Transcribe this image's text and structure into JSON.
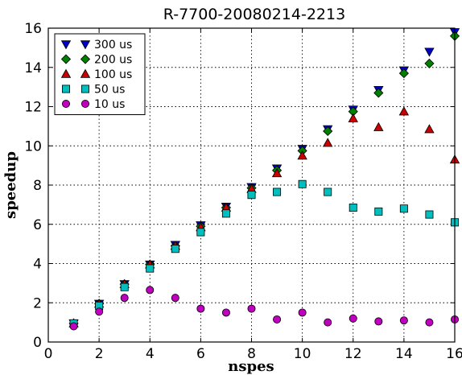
{
  "chart_data": {
    "type": "scatter",
    "title": "R-7700-20080214-2213",
    "xlabel": "nspes",
    "ylabel": "speedup",
    "xlim": [
      0,
      16
    ],
    "ylim": [
      0,
      16
    ],
    "xticks": [
      0,
      2,
      4,
      6,
      8,
      10,
      12,
      14,
      16
    ],
    "yticks": [
      0,
      2,
      4,
      6,
      8,
      10,
      12,
      14,
      16
    ],
    "grid": true,
    "legend_position": "top-left",
    "series": [
      {
        "name": "300 us",
        "marker": "triangle-down",
        "color": "#0000cc",
        "x": [
          1,
          2,
          3,
          4,
          5,
          6,
          7,
          8,
          9,
          10,
          11,
          12,
          13,
          14,
          15,
          16
        ],
        "y": [
          0.95,
          1.95,
          2.95,
          3.95,
          4.95,
          5.95,
          6.9,
          7.9,
          8.85,
          9.85,
          10.85,
          11.85,
          12.85,
          13.85,
          14.8,
          15.8
        ]
      },
      {
        "name": "200 us",
        "marker": "diamond",
        "color": "#008000",
        "x": [
          1,
          2,
          3,
          4,
          5,
          6,
          7,
          8,
          9,
          10,
          11,
          12,
          13,
          14,
          15,
          16
        ],
        "y": [
          0.95,
          1.95,
          2.95,
          3.95,
          4.9,
          5.9,
          6.85,
          7.85,
          8.75,
          9.75,
          10.75,
          11.75,
          12.7,
          13.7,
          14.2,
          15.6
        ]
      },
      {
        "name": "100 us",
        "marker": "triangle-up",
        "color": "#cc0000",
        "x": [
          1,
          2,
          3,
          4,
          5,
          6,
          7,
          8,
          9,
          10,
          11,
          12,
          13,
          14,
          15,
          16
        ],
        "y": [
          0.95,
          1.95,
          2.95,
          3.95,
          4.9,
          5.85,
          6.85,
          7.8,
          8.6,
          9.5,
          10.15,
          11.4,
          10.95,
          11.75,
          10.85,
          9.3
        ]
      },
      {
        "name": "50 us",
        "marker": "square",
        "color": "#00bfbf",
        "x": [
          1,
          2,
          3,
          4,
          5,
          6,
          7,
          8,
          9,
          10,
          11,
          12,
          13,
          14,
          15,
          16
        ],
        "y": [
          0.95,
          1.85,
          2.8,
          3.75,
          4.75,
          5.6,
          6.55,
          7.5,
          7.65,
          8.05,
          7.65,
          6.85,
          6.65,
          6.8,
          6.5,
          6.1
        ]
      },
      {
        "name": "10 us",
        "marker": "circle",
        "color": "#bf00bf",
        "x": [
          1,
          2,
          3,
          4,
          5,
          6,
          7,
          8,
          9,
          10,
          11,
          12,
          13,
          14,
          15,
          16
        ],
        "y": [
          0.8,
          1.55,
          2.25,
          2.65,
          2.25,
          1.7,
          1.5,
          1.7,
          1.15,
          1.5,
          1.0,
          1.2,
          1.05,
          1.1,
          1.0,
          1.15
        ]
      }
    ]
  }
}
